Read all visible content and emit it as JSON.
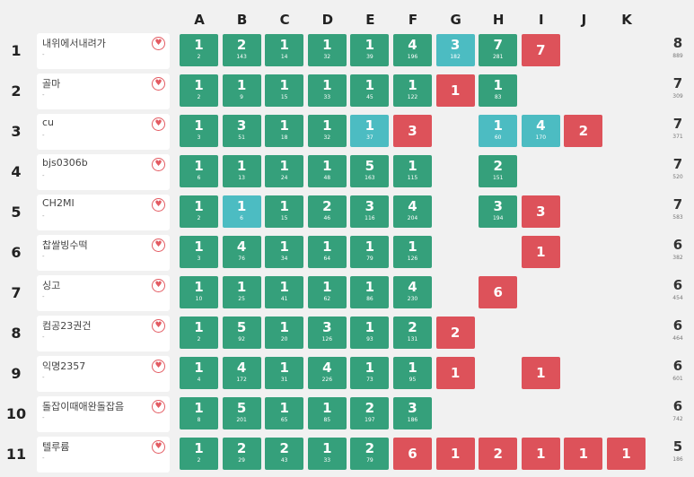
{
  "problems": [
    "A",
    "B",
    "C",
    "D",
    "E",
    "F",
    "G",
    "H",
    "I",
    "J",
    "K"
  ],
  "colors": {
    "solved": "#35a07b",
    "first_solve": "#4cbcc2",
    "failed": "#dd525a"
  },
  "rows": [
    {
      "rank": "1",
      "name": "내위에서내려가",
      "sub": "-",
      "total": "8",
      "penalty": "889",
      "cells": [
        [
          "s",
          "1",
          "2"
        ],
        [
          "s",
          "2",
          "143"
        ],
        [
          "s",
          "1",
          "14"
        ],
        [
          "s",
          "1",
          "32"
        ],
        [
          "s",
          "1",
          "39"
        ],
        [
          "s",
          "4",
          "196"
        ],
        [
          "f",
          "3",
          "182"
        ],
        [
          "s",
          "7",
          "281"
        ],
        [
          "x",
          "7",
          ""
        ],
        null,
        null
      ]
    },
    {
      "rank": "2",
      "name": "골마",
      "sub": "-",
      "total": "7",
      "penalty": "309",
      "cells": [
        [
          "s",
          "1",
          "2"
        ],
        [
          "s",
          "1",
          "9"
        ],
        [
          "s",
          "1",
          "15"
        ],
        [
          "s",
          "1",
          "33"
        ],
        [
          "s",
          "1",
          "45"
        ],
        [
          "s",
          "1",
          "122"
        ],
        [
          "x",
          "1",
          ""
        ],
        [
          "s",
          "1",
          "83"
        ],
        null,
        null,
        null
      ]
    },
    {
      "rank": "3",
      "name": "cu",
      "sub": "-",
      "total": "7",
      "penalty": "371",
      "cells": [
        [
          "s",
          "1",
          "3"
        ],
        [
          "s",
          "3",
          "51"
        ],
        [
          "s",
          "1",
          "18"
        ],
        [
          "s",
          "1",
          "32"
        ],
        [
          "f",
          "1",
          "37"
        ],
        [
          "x",
          "3",
          ""
        ],
        null,
        [
          "f",
          "1",
          "60"
        ],
        [
          "f",
          "4",
          "170"
        ],
        [
          "x",
          "2",
          ""
        ],
        null
      ]
    },
    {
      "rank": "4",
      "name": "bjs0306b",
      "sub": "-",
      "total": "7",
      "penalty": "520",
      "cells": [
        [
          "s",
          "1",
          "6"
        ],
        [
          "s",
          "1",
          "13"
        ],
        [
          "s",
          "1",
          "24"
        ],
        [
          "s",
          "1",
          "48"
        ],
        [
          "s",
          "5",
          "163"
        ],
        [
          "s",
          "1",
          "115"
        ],
        null,
        [
          "s",
          "2",
          "151"
        ],
        null,
        null,
        null
      ]
    },
    {
      "rank": "5",
      "name": "CH2MI",
      "sub": "-",
      "total": "7",
      "penalty": "583",
      "cells": [
        [
          "s",
          "1",
          "2"
        ],
        [
          "f",
          "1",
          "6"
        ],
        [
          "s",
          "1",
          "15"
        ],
        [
          "s",
          "2",
          "46"
        ],
        [
          "s",
          "3",
          "116"
        ],
        [
          "s",
          "4",
          "204"
        ],
        null,
        [
          "s",
          "3",
          "194"
        ],
        [
          "x",
          "3",
          ""
        ],
        null,
        null
      ]
    },
    {
      "rank": "6",
      "name": "찹쌀빙수떡",
      "sub": "-",
      "total": "6",
      "penalty": "382",
      "cells": [
        [
          "s",
          "1",
          "3"
        ],
        [
          "s",
          "4",
          "76"
        ],
        [
          "s",
          "1",
          "34"
        ],
        [
          "s",
          "1",
          "64"
        ],
        [
          "s",
          "1",
          "79"
        ],
        [
          "s",
          "1",
          "126"
        ],
        null,
        null,
        [
          "x",
          "1",
          ""
        ],
        null,
        null
      ]
    },
    {
      "rank": "7",
      "name": "싱고",
      "sub": "-",
      "total": "6",
      "penalty": "454",
      "cells": [
        [
          "s",
          "1",
          "10"
        ],
        [
          "s",
          "1",
          "25"
        ],
        [
          "s",
          "1",
          "41"
        ],
        [
          "s",
          "1",
          "62"
        ],
        [
          "s",
          "1",
          "86"
        ],
        [
          "s",
          "4",
          "230"
        ],
        null,
        [
          "x",
          "6",
          ""
        ],
        null,
        null,
        null
      ]
    },
    {
      "rank": "8",
      "name": "컴공23권건",
      "sub": "-",
      "total": "6",
      "penalty": "464",
      "cells": [
        [
          "s",
          "1",
          "2"
        ],
        [
          "s",
          "5",
          "92"
        ],
        [
          "s",
          "1",
          "20"
        ],
        [
          "s",
          "3",
          "126"
        ],
        [
          "s",
          "1",
          "93"
        ],
        [
          "s",
          "2",
          "131"
        ],
        [
          "x",
          "2",
          ""
        ],
        null,
        null,
        null,
        null
      ]
    },
    {
      "rank": "9",
      "name": "익명2357",
      "sub": "-",
      "total": "6",
      "penalty": "601",
      "cells": [
        [
          "s",
          "1",
          "4"
        ],
        [
          "s",
          "4",
          "172"
        ],
        [
          "s",
          "1",
          "31"
        ],
        [
          "s",
          "4",
          "226"
        ],
        [
          "s",
          "1",
          "73"
        ],
        [
          "s",
          "1",
          "95"
        ],
        [
          "x",
          "1",
          ""
        ],
        null,
        [
          "x",
          "1",
          ""
        ],
        null,
        null
      ]
    },
    {
      "rank": "10",
      "name": "돌잡이때애완돌잡음",
      "sub": "-",
      "total": "6",
      "penalty": "742",
      "cells": [
        [
          "s",
          "1",
          "8"
        ],
        [
          "s",
          "5",
          "201"
        ],
        [
          "s",
          "1",
          "65"
        ],
        [
          "s",
          "1",
          "85"
        ],
        [
          "s",
          "2",
          "197"
        ],
        [
          "s",
          "3",
          "186"
        ],
        null,
        null,
        null,
        null,
        null
      ]
    },
    {
      "rank": "11",
      "name": "텔루륨",
      "sub": "-",
      "total": "5",
      "penalty": "186",
      "cells": [
        [
          "s",
          "1",
          "2"
        ],
        [
          "s",
          "2",
          "29"
        ],
        [
          "s",
          "2",
          "43"
        ],
        [
          "s",
          "1",
          "33"
        ],
        [
          "s",
          "2",
          "79"
        ],
        [
          "x",
          "6",
          ""
        ],
        [
          "x",
          "1",
          ""
        ],
        [
          "x",
          "2",
          ""
        ],
        [
          "x",
          "1",
          ""
        ],
        [
          "x",
          "1",
          ""
        ],
        [
          "x",
          "1",
          ""
        ]
      ]
    }
  ]
}
